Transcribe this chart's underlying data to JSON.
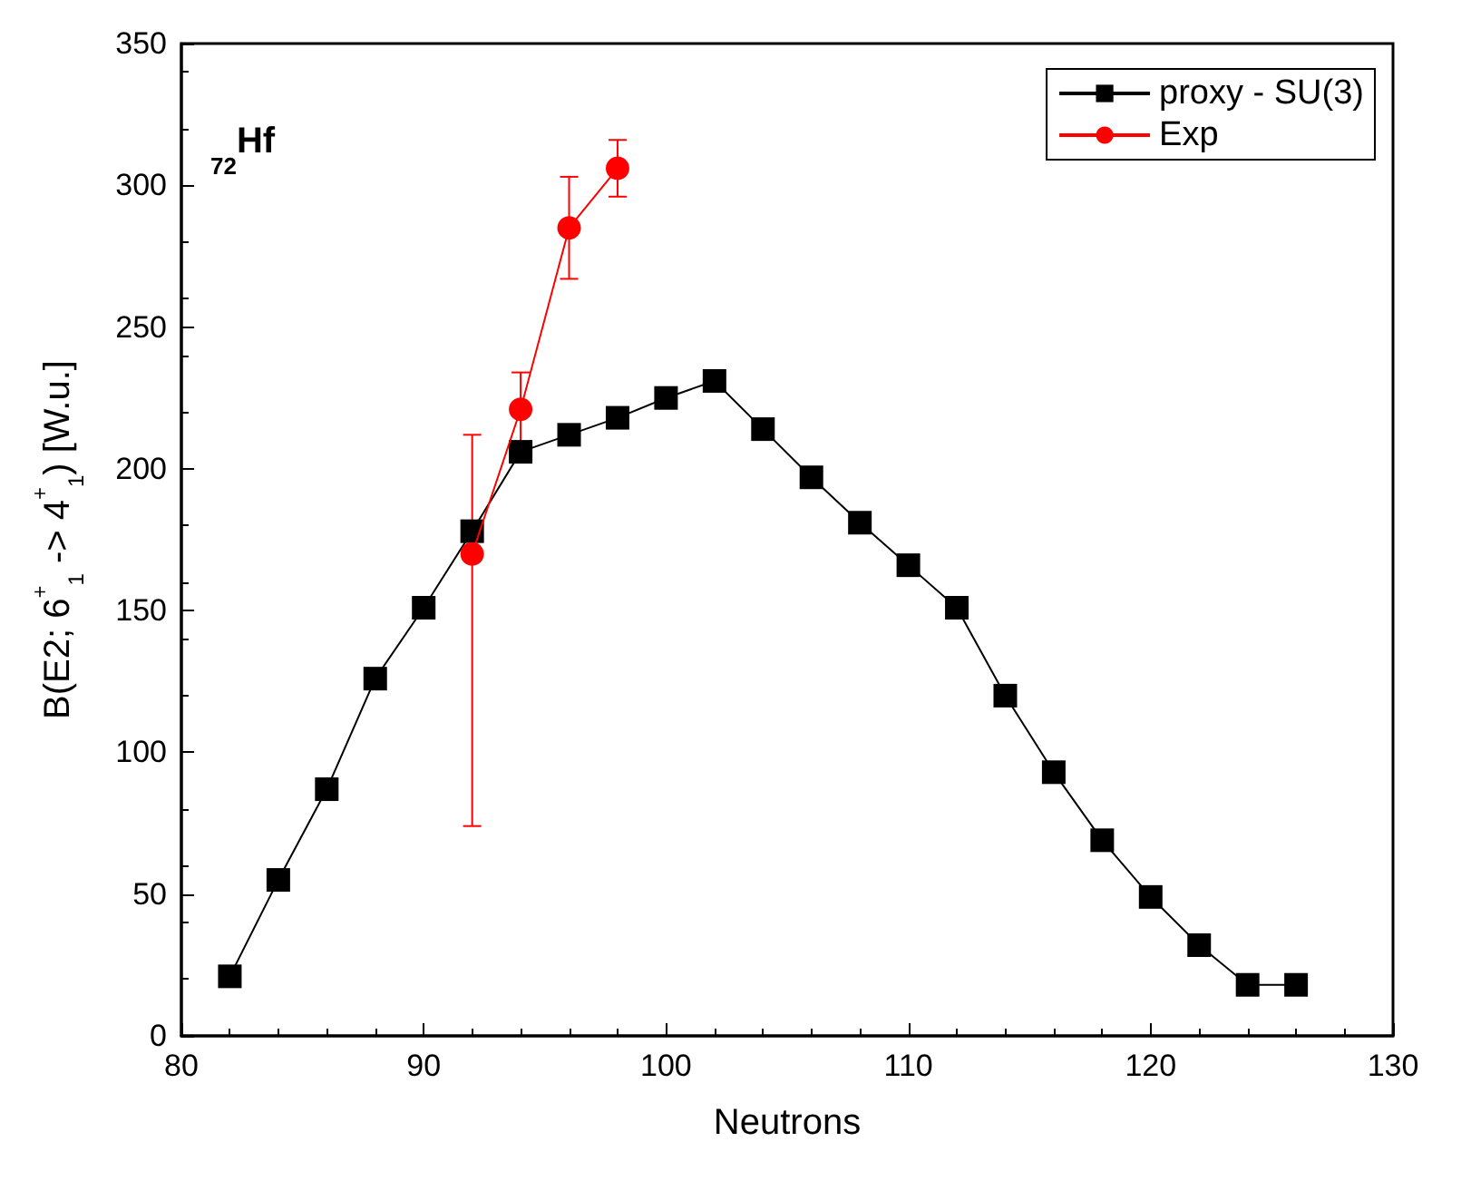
{
  "chart_data": {
    "type": "line",
    "xlabel": "Neutrons",
    "ylabel": "B(E2; 6$^{+}$$_{1}$ -> 4$^{+}$$_{1}$) [W.u.]",
    "annotations": [
      "$_{72}$Hf"
    ],
    "xlim": [
      80,
      130
    ],
    "xticks": [
      80,
      90,
      100,
      110,
      120,
      130
    ],
    "ylim": [
      0,
      350
    ],
    "yticks": [
      0,
      50,
      100,
      150,
      200,
      250,
      300,
      350
    ],
    "grid": false,
    "legend": "top right",
    "series": [
      {
        "name": "proxy - SU(3)",
        "color": "#000000",
        "marker": "square",
        "x": [
          82,
          84,
          86,
          88,
          90,
          92,
          94,
          96,
          98,
          100,
          102,
          104,
          106,
          108,
          110,
          112,
          114,
          116,
          118,
          120,
          122,
          124,
          126
        ],
        "values": [
          21,
          55,
          87,
          126,
          151,
          178,
          206,
          212,
          218,
          225,
          231,
          214,
          197,
          181,
          166,
          151,
          120,
          93,
          69,
          49,
          32,
          18,
          18
        ]
      },
      {
        "name": "Exp",
        "color": "#ff0000",
        "marker": "circle",
        "x": [
          92,
          94,
          96,
          98
        ],
        "values": [
          170,
          221,
          285,
          306
        ],
        "errors": [
          [
            74,
            212
          ],
          [
            208,
            234
          ],
          [
            267,
            303
          ],
          [
            296,
            316
          ]
        ]
      }
    ]
  }
}
